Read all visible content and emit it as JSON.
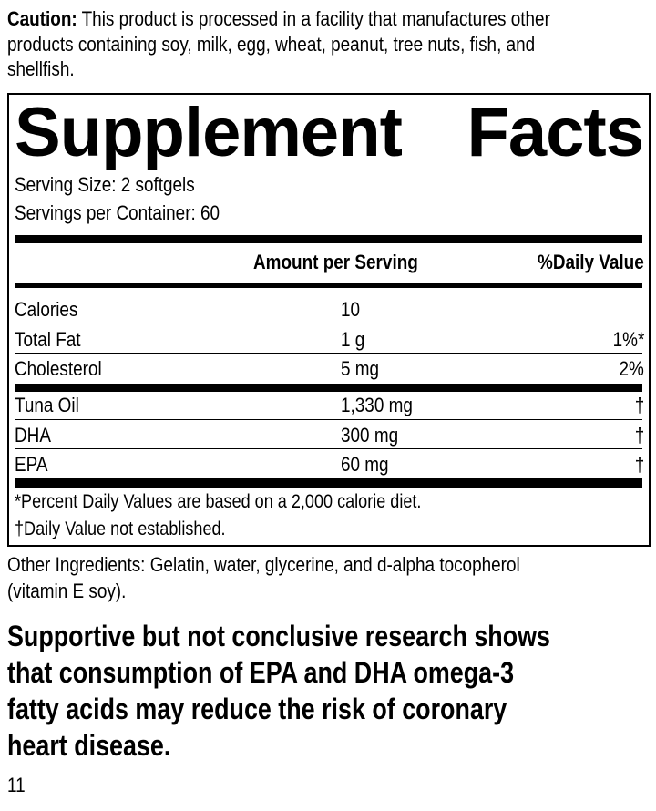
{
  "caution": {
    "label": "Caution:",
    "lines": [
      " This product is processed in a facility that manufactures other",
      "products containing soy, milk, egg, wheat, peanut, tree nuts, fish, and",
      "shellfish."
    ]
  },
  "facts": {
    "title": "Supplement Facts",
    "serving_size": "Serving Size: 2 softgels",
    "servings_per_container": "Servings per Container: 60",
    "header": {
      "amount": "Amount per Serving",
      "dv": "%Daily Value"
    },
    "rows": [
      {
        "name": "Calories",
        "amount": "10",
        "dv": ""
      },
      {
        "name": "Total Fat",
        "amount": "1 g",
        "dv": "1%*"
      },
      {
        "name": "Cholesterol",
        "amount": "5 mg",
        "dv": "2%"
      },
      {
        "name": "Tuna Oil",
        "amount": "1,330 mg",
        "dv": "†"
      },
      {
        "name": "DHA",
        "amount": "300 mg",
        "dv": "†"
      },
      {
        "name": "EPA",
        "amount": "60 mg",
        "dv": "†"
      }
    ],
    "footnotes": [
      "*Percent Daily Values are based on a 2,000 calorie diet.",
      "†Daily Value not established."
    ]
  },
  "other_ingredients": [
    "Other Ingredients: Gelatin, water, glycerine, and d-alpha tocopherol",
    "(vitamin E soy)."
  ],
  "claim": [
    "Supportive but not conclusive research shows",
    "that consumption of EPA and DHA omega-3",
    "fatty acids may reduce the risk of coronary",
    "heart disease."
  ],
  "page_number": "11"
}
